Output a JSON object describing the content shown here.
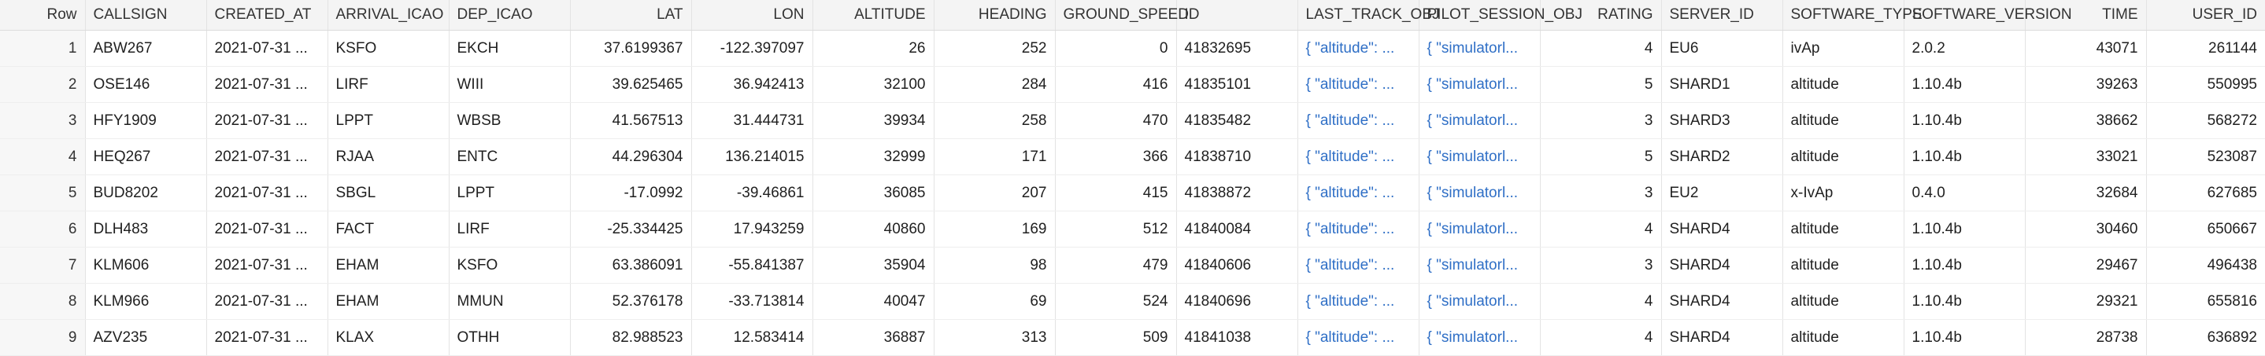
{
  "columns": [
    {
      "label": "Row",
      "key": "row",
      "align": "right"
    },
    {
      "label": "CALLSIGN",
      "key": "callsign",
      "align": "left"
    },
    {
      "label": "CREATED_AT",
      "key": "created_at",
      "align": "left"
    },
    {
      "label": "ARRIVAL_ICAO",
      "key": "arrival_icao",
      "align": "left"
    },
    {
      "label": "DEP_ICAO",
      "key": "dep_icao",
      "align": "left"
    },
    {
      "label": "LAT",
      "key": "lat",
      "align": "right"
    },
    {
      "label": "LON",
      "key": "lon",
      "align": "right"
    },
    {
      "label": "ALTITUDE",
      "key": "altitude",
      "align": "right"
    },
    {
      "label": "HEADING",
      "key": "heading",
      "align": "right"
    },
    {
      "label": "GROUND_SPEED",
      "key": "ground_speed",
      "align": "right"
    },
    {
      "label": "ID",
      "key": "id",
      "align": "left"
    },
    {
      "label": "LAST_TRACK_OBJ",
      "key": "last_track",
      "align": "left"
    },
    {
      "label": "PILOT_SESSION_OBJ",
      "key": "pilot_session",
      "align": "left"
    },
    {
      "label": "RATING",
      "key": "rating",
      "align": "right"
    },
    {
      "label": "SERVER_ID",
      "key": "server_id",
      "align": "left"
    },
    {
      "label": "SOFTWARE_TYPE",
      "key": "software_type",
      "align": "left"
    },
    {
      "label": "SOFTWARE_VERSION",
      "key": "software_version",
      "align": "left"
    },
    {
      "label": "TIME",
      "key": "time",
      "align": "right"
    },
    {
      "label": "USER_ID",
      "key": "user_id",
      "align": "right"
    }
  ],
  "rows": [
    {
      "row": "1",
      "callsign": "ABW267",
      "created_at": "2021-07-31 ...",
      "arrival_icao": "KSFO",
      "dep_icao": "EKCH",
      "lat": "37.6199367",
      "lon": "-122.397097",
      "altitude": "26",
      "heading": "252",
      "ground_speed": "0",
      "id": "41832695",
      "last_track": "{ \"altitude\": ...",
      "pilot_session": "{ \"simulatorl...",
      "rating": "4",
      "server_id": "EU6",
      "software_type": "ivAp",
      "software_version": "2.0.2",
      "time": "43071",
      "user_id": "261144"
    },
    {
      "row": "2",
      "callsign": "OSE146",
      "created_at": "2021-07-31 ...",
      "arrival_icao": "LIRF",
      "dep_icao": "WIII",
      "lat": "39.625465",
      "lon": "36.942413",
      "altitude": "32100",
      "heading": "284",
      "ground_speed": "416",
      "id": "41835101",
      "last_track": "{ \"altitude\": ...",
      "pilot_session": "{ \"simulatorl...",
      "rating": "5",
      "server_id": "SHARD1",
      "software_type": "altitude",
      "software_version": "1.10.4b",
      "time": "39263",
      "user_id": "550995"
    },
    {
      "row": "3",
      "callsign": "HFY1909",
      "created_at": "2021-07-31 ...",
      "arrival_icao": "LPPT",
      "dep_icao": "WBSB",
      "lat": "41.567513",
      "lon": "31.444731",
      "altitude": "39934",
      "heading": "258",
      "ground_speed": "470",
      "id": "41835482",
      "last_track": "{ \"altitude\": ...",
      "pilot_session": "{ \"simulatorl...",
      "rating": "3",
      "server_id": "SHARD3",
      "software_type": "altitude",
      "software_version": "1.10.4b",
      "time": "38662",
      "user_id": "568272"
    },
    {
      "row": "4",
      "callsign": "HEQ267",
      "created_at": "2021-07-31 ...",
      "arrival_icao": "RJAA",
      "dep_icao": "ENTC",
      "lat": "44.296304",
      "lon": "136.214015",
      "altitude": "32999",
      "heading": "171",
      "ground_speed": "366",
      "id": "41838710",
      "last_track": "{ \"altitude\": ...",
      "pilot_session": "{ \"simulatorl...",
      "rating": "5",
      "server_id": "SHARD2",
      "software_type": "altitude",
      "software_version": "1.10.4b",
      "time": "33021",
      "user_id": "523087"
    },
    {
      "row": "5",
      "callsign": "BUD8202",
      "created_at": "2021-07-31 ...",
      "arrival_icao": "SBGL",
      "dep_icao": "LPPT",
      "lat": "-17.0992",
      "lon": "-39.46861",
      "altitude": "36085",
      "heading": "207",
      "ground_speed": "415",
      "id": "41838872",
      "last_track": "{ \"altitude\": ...",
      "pilot_session": "{ \"simulatorl...",
      "rating": "3",
      "server_id": "EU2",
      "software_type": "x-IvAp",
      "software_version": "0.4.0",
      "time": "32684",
      "user_id": "627685"
    },
    {
      "row": "6",
      "callsign": "DLH483",
      "created_at": "2021-07-31 ...",
      "arrival_icao": "FACT",
      "dep_icao": "LIRF",
      "lat": "-25.334425",
      "lon": "17.943259",
      "altitude": "40860",
      "heading": "169",
      "ground_speed": "512",
      "id": "41840084",
      "last_track": "{ \"altitude\": ...",
      "pilot_session": "{ \"simulatorl...",
      "rating": "4",
      "server_id": "SHARD4",
      "software_type": "altitude",
      "software_version": "1.10.4b",
      "time": "30460",
      "user_id": "650667"
    },
    {
      "row": "7",
      "callsign": "KLM606",
      "created_at": "2021-07-31 ...",
      "arrival_icao": "EHAM",
      "dep_icao": "KSFO",
      "lat": "63.386091",
      "lon": "-55.841387",
      "altitude": "35904",
      "heading": "98",
      "ground_speed": "479",
      "id": "41840606",
      "last_track": "{ \"altitude\": ...",
      "pilot_session": "{ \"simulatorl...",
      "rating": "3",
      "server_id": "SHARD4",
      "software_type": "altitude",
      "software_version": "1.10.4b",
      "time": "29467",
      "user_id": "496438"
    },
    {
      "row": "8",
      "callsign": "KLM966",
      "created_at": "2021-07-31 ...",
      "arrival_icao": "EHAM",
      "dep_icao": "MMUN",
      "lat": "52.376178",
      "lon": "-33.713814",
      "altitude": "40047",
      "heading": "69",
      "ground_speed": "524",
      "id": "41840696",
      "last_track": "{ \"altitude\": ...",
      "pilot_session": "{ \"simulatorl...",
      "rating": "4",
      "server_id": "SHARD4",
      "software_type": "altitude",
      "software_version": "1.10.4b",
      "time": "29321",
      "user_id": "655816"
    },
    {
      "row": "9",
      "callsign": "AZV235",
      "created_at": "2021-07-31 ...",
      "arrival_icao": "KLAX",
      "dep_icao": "OTHH",
      "lat": "82.988523",
      "lon": "12.583414",
      "altitude": "36887",
      "heading": "313",
      "ground_speed": "509",
      "id": "41841038",
      "last_track": "{ \"altitude\": ...",
      "pilot_session": "{ \"simulatorl...",
      "rating": "4",
      "server_id": "SHARD4",
      "software_type": "altitude",
      "software_version": "1.10.4b",
      "time": "28738",
      "user_id": "636892"
    }
  ]
}
